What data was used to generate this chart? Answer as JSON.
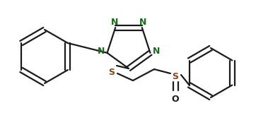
{
  "bg_color": "#ffffff",
  "line_color": "#1a1a1a",
  "label_color_N": "#1a6b1a",
  "label_color_S": "#8B4513",
  "label_color_O": "#1a1a1a",
  "line_width": 1.6,
  "figsize": [
    3.62,
    1.77
  ],
  "dpi": 100,
  "xlim": [
    0,
    362
  ],
  "ylim": [
    0,
    177
  ]
}
